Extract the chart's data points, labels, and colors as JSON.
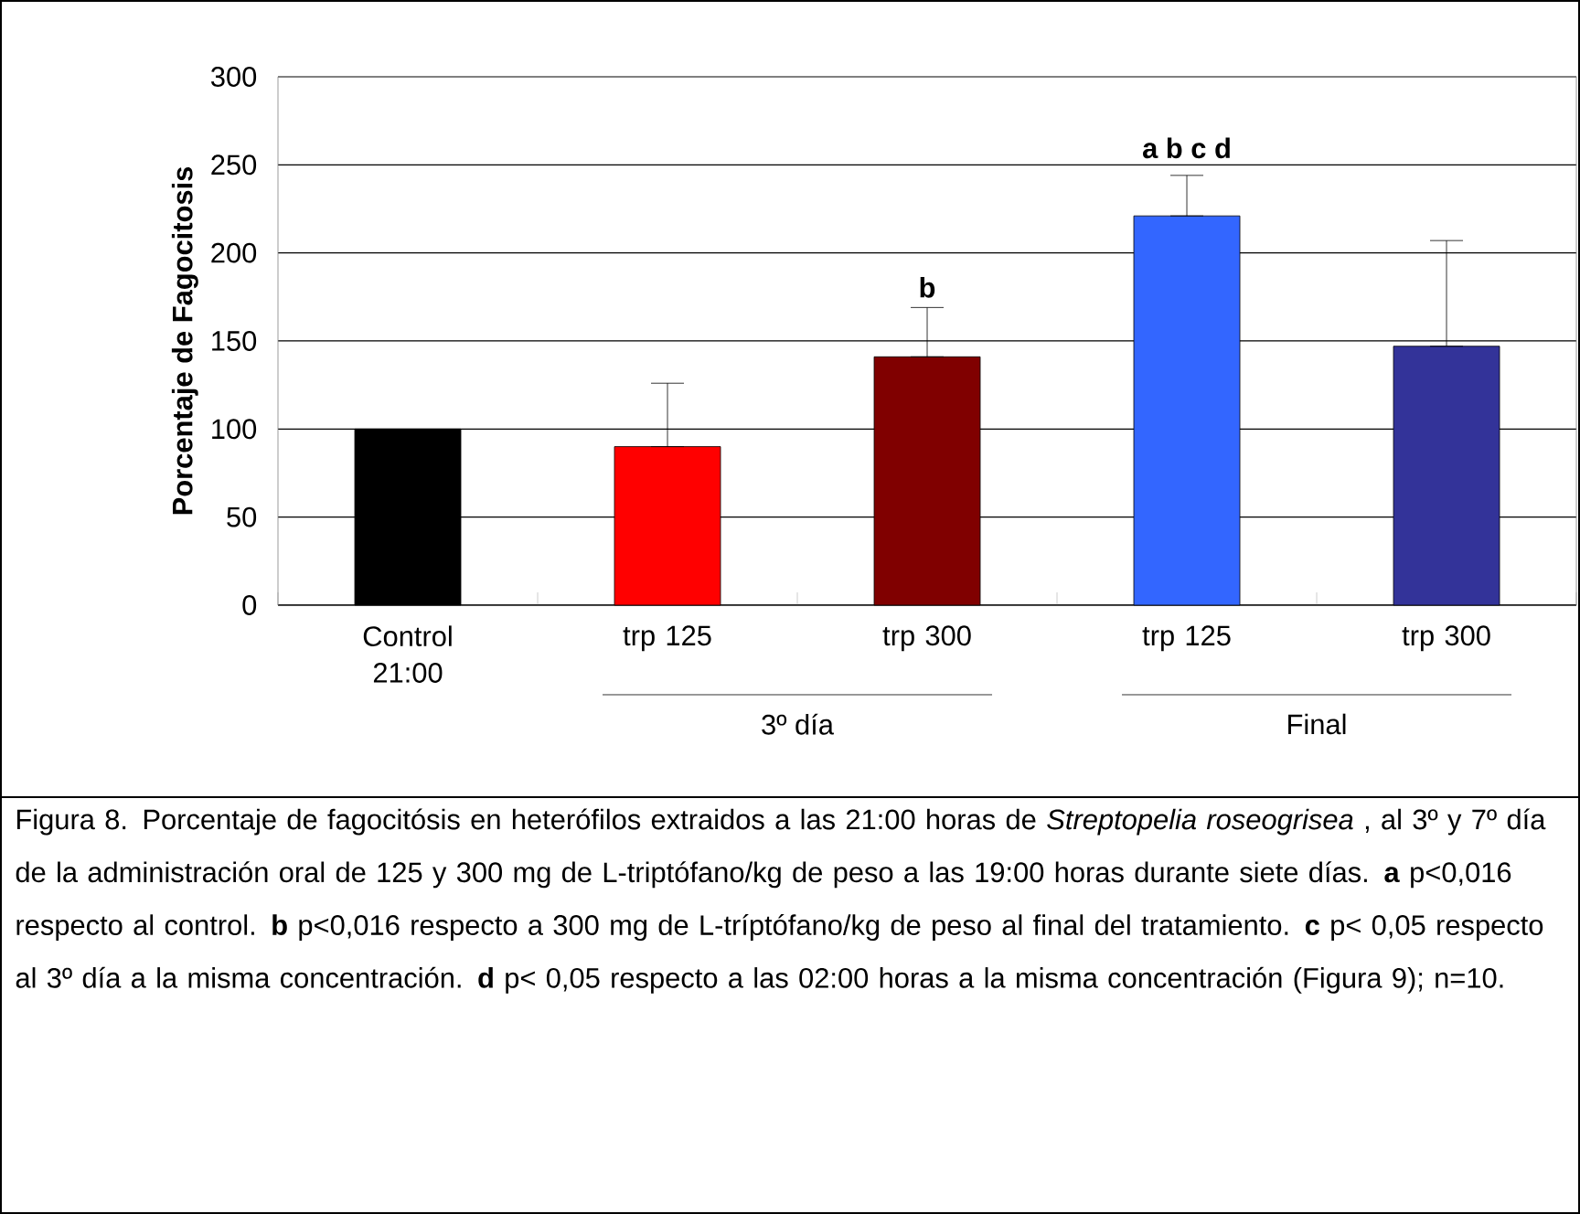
{
  "chart_data": {
    "type": "bar",
    "ylabel": "Porcentaje de Fagocitosis",
    "categories": [
      "Control 21:00",
      "trp 125",
      "trp 300",
      "trp 125",
      "trp 300"
    ],
    "values": [
      100,
      90,
      141,
      221,
      147
    ],
    "colors": [
      "#000000",
      "#ff0000",
      "#800000",
      "#3366ff",
      "#333399"
    ],
    "errors": [
      null,
      [
        90,
        126
      ],
      [
        141,
        169
      ],
      [
        221,
        244
      ],
      [
        147,
        207
      ]
    ],
    "ylim": [
      0,
      300
    ],
    "yticks": [
      0,
      50,
      100,
      150,
      200,
      250,
      300
    ],
    "grid": "y",
    "annotations": [
      "b",
      "a b c d",
      "3º día",
      "Final",
      "Figura 8. Porcentaje  de fagocitósis en heterófilos extraidos a las 21:00 horas de *Streptopelia roseogrisea* , al  3º y  7º día de la administración oral de 125 y 300 mg de L-triptófano/kg de peso a las 19:00 horas durante siete días. **a** p<0,016 respecto al control. **b** p<0,016 respecto a 300 mg de L-tríptófano/kg de peso  al final del tratamiento. **c** p< 0,05 respecto al 3º día a la misma concentración. **d** p< 0,05 respecto a las 02:00 horas  a la misma concentración (Figura 9); n=10."
    ]
  }
}
